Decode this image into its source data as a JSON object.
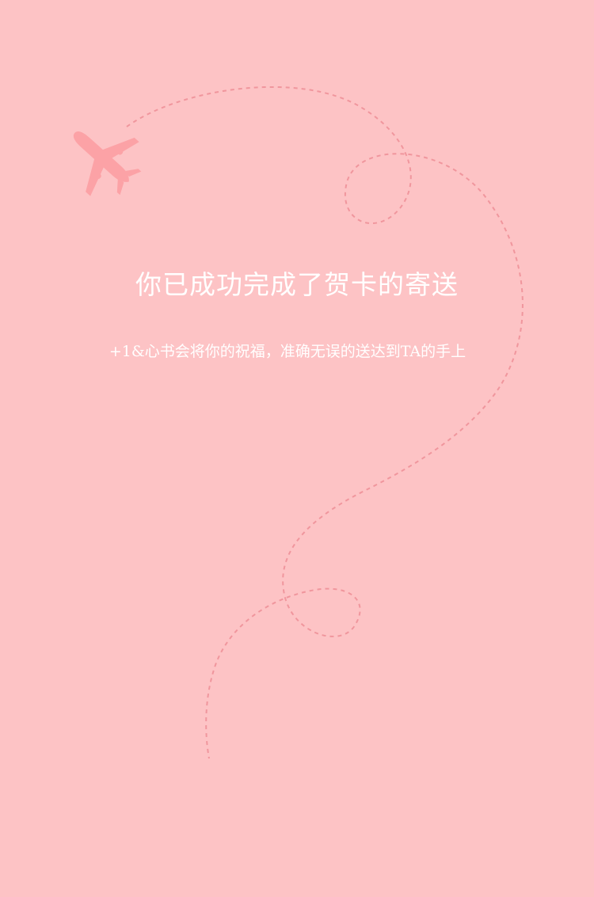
{
  "colors": {
    "background": "#fdc3c5",
    "path_dash": "#f0969d",
    "plane": "#fca2a6",
    "text": "#ffffff"
  },
  "icons": {
    "plane": "airplane-icon"
  },
  "content": {
    "title": "你已成功完成了贺卡的寄送",
    "subtitle": "+1&心书会将你的祝福，准确无误的送达到TA的手上"
  }
}
